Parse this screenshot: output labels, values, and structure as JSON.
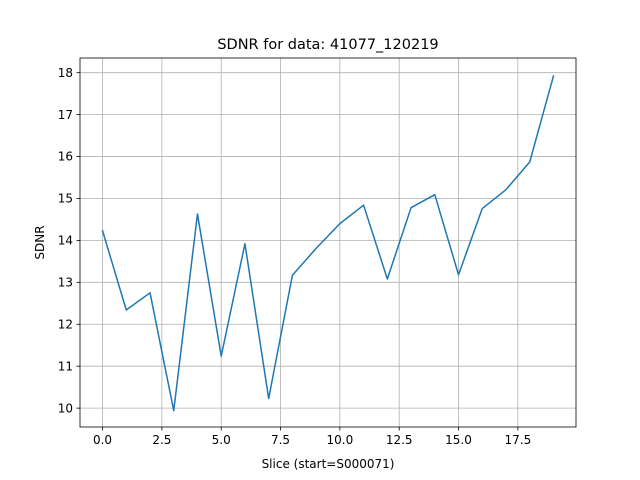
{
  "chart_data": {
    "type": "line",
    "title": "SDNR for data: 41077_120219",
    "xlabel": "Slice (start=S000071)",
    "ylabel": "SDNR",
    "xlim": [
      -0.95,
      19.95
    ],
    "ylim": [
      9.55,
      18.35
    ],
    "xticks": [
      0.0,
      2.5,
      5.0,
      7.5,
      10.0,
      12.5,
      15.0,
      17.5
    ],
    "xtick_labels": [
      "0.0",
      "2.5",
      "5.0",
      "7.5",
      "10.0",
      "12.5",
      "15.0",
      "17.5"
    ],
    "yticks": [
      10,
      11,
      12,
      13,
      14,
      15,
      16,
      17,
      18
    ],
    "ytick_labels": [
      "10",
      "11",
      "12",
      "13",
      "14",
      "15",
      "16",
      "17",
      "18"
    ],
    "grid": true,
    "colors": {
      "line": "#1f77b4",
      "grid": "#b0b0b0",
      "axes": "#000000"
    },
    "series": [
      {
        "x": [
          0,
          1,
          2,
          3,
          4,
          5,
          6,
          7,
          8,
          9,
          10,
          11,
          12,
          13,
          14,
          15,
          16,
          17,
          18,
          19
        ],
        "values": [
          14.23,
          12.34,
          12.75,
          9.94,
          14.63,
          11.24,
          13.92,
          10.23,
          13.17,
          13.81,
          14.4,
          14.84,
          13.08,
          14.78,
          15.09,
          13.18,
          14.76,
          15.21,
          15.87,
          17.92
        ]
      }
    ]
  }
}
